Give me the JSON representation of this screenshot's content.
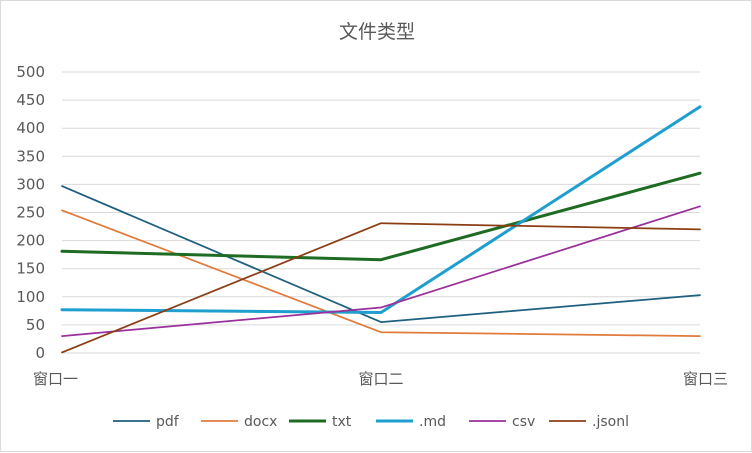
{
  "chart_data": {
    "type": "line",
    "title": "文件类型",
    "categories": [
      "窗口一",
      "窗口二",
      "窗口三"
    ],
    "xlabel": "",
    "ylabel": "",
    "ylim": [
      0,
      500
    ],
    "yticks": [
      0,
      50,
      100,
      150,
      200,
      250,
      300,
      350,
      400,
      450,
      500
    ],
    "grid": true,
    "legend_position": "bottom",
    "series": [
      {
        "name": "pdf",
        "values": [
          297,
          55,
          103
        ],
        "color": "#1f5f7f",
        "weight": "thin"
      },
      {
        "name": "docx",
        "values": [
          254,
          37,
          30
        ],
        "color": "#e07b3c",
        "weight": "thin"
      },
      {
        "name": "txt",
        "values": [
          181,
          166,
          320
        ],
        "color": "#1e6b24",
        "weight": "thick"
      },
      {
        "name": ".md",
        "values": [
          77,
          72,
          438
        ],
        "color": "#1f9fcf",
        "weight": "thick"
      },
      {
        "name": "csv",
        "values": [
          30,
          81,
          261
        ],
        "color": "#9b2f9b",
        "weight": "thin"
      },
      {
        "name": ".jsonl",
        "values": [
          1,
          231,
          220
        ],
        "color": "#8b3e14",
        "weight": "thin"
      }
    ]
  }
}
